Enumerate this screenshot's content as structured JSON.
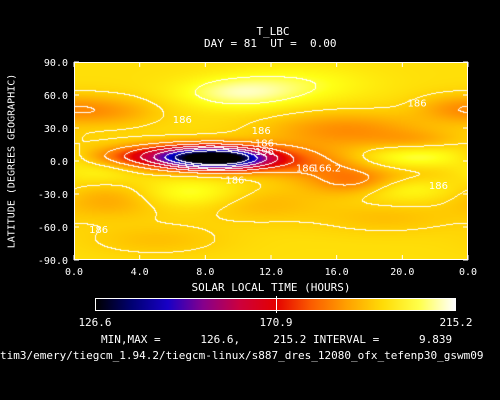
{
  "chart_data": {
    "type": "heatmap",
    "title": "T_LBC",
    "subtitle": {
      "day_label": "DAY =",
      "day": "81",
      "ut_label": "UT =",
      "ut": "0.00"
    },
    "xlabel": "SOLAR LOCAL TIME (HOURS)",
    "ylabel": "LATITUDE (DEGREES GEOGRAPHIC)",
    "xlim": [
      0,
      24
    ],
    "ylim": [
      -90,
      90
    ],
    "xticks": [
      "0.0",
      "4.0",
      "8.0",
      "12.0",
      "16.0",
      "20.0",
      "0.0"
    ],
    "yticks": [
      "90.0",
      "60.0",
      "30.0",
      "0.0",
      "-30.0",
      "-60.0",
      "-90.0"
    ],
    "colorbar": {
      "min_label": "126.6",
      "mid_label": "170.9",
      "max_label": "215.2"
    },
    "stats": {
      "minmax_label": "MIN,MAX =",
      "min": "126.6,",
      "max": "215.2",
      "interval_label": "INTERVAL =",
      "interval": "9.839"
    },
    "contour_labels": [
      {
        "text": "186",
        "x": 6.6,
        "y": 38
      },
      {
        "text": "186",
        "x": 20.9,
        "y": 53
      },
      {
        "text": "186",
        "x": 11.4,
        "y": 28
      },
      {
        "text": "186",
        "x": 11.6,
        "y": 17
      },
      {
        "text": "196",
        "x": 11.6,
        "y": 9
      },
      {
        "text": "186",
        "x": 14.1,
        "y": -6
      },
      {
        "text": "166.2",
        "x": 15.4,
        "y": -6
      },
      {
        "text": "186",
        "x": 9.8,
        "y": -17
      },
      {
        "text": "186",
        "x": 22.2,
        "y": -22
      },
      {
        "text": "186",
        "x": 1.5,
        "y": -62
      }
    ],
    "field": {
      "base": 198,
      "blobs": [
        {
          "x": 8.8,
          "y": 2,
          "sx": 2.2,
          "sy": 7,
          "a": -62
        },
        {
          "x": 6.0,
          "y": 4,
          "sx": 2.8,
          "sy": 8,
          "a": -25
        },
        {
          "x": 10.5,
          "y": 5,
          "sx": 3.8,
          "sy": 9,
          "a": -10
        },
        {
          "x": 14.5,
          "y": -5,
          "sx": 2.6,
          "sy": 9,
          "a": -10
        },
        {
          "x": 17.2,
          "y": -20,
          "sx": 2.0,
          "sy": 9,
          "a": -16
        },
        {
          "x": 16.5,
          "y": 28,
          "sx": 3.5,
          "sy": 12,
          "a": -12
        },
        {
          "x": 21.0,
          "y": 18,
          "sx": 2.0,
          "sy": 7,
          "a": -6
        },
        {
          "x": 3.0,
          "y": 4,
          "sx": 2.0,
          "sy": 6,
          "a": -5
        },
        {
          "x": 22.5,
          "y": -8,
          "sx": 2.5,
          "sy": 10,
          "a": -7
        },
        {
          "x": 2.2,
          "y": 45,
          "sx": 2.2,
          "sy": 10,
          "a": -9
        },
        {
          "x": 23.2,
          "y": 48,
          "sx": 1.8,
          "sy": 9,
          "a": -8
        },
        {
          "x": 2.5,
          "y": -35,
          "sx": 2.5,
          "sy": 12,
          "a": -9
        },
        {
          "x": 11.0,
          "y": -38,
          "sx": 3.0,
          "sy": 12,
          "a": -7
        },
        {
          "x": 5.0,
          "y": -72,
          "sx": 3.0,
          "sy": 10,
          "a": -5
        },
        {
          "x": 19.0,
          "y": -52,
          "sx": 3.0,
          "sy": 10,
          "a": -5
        },
        {
          "x": 10.0,
          "y": 62,
          "sx": 2.5,
          "sy": 10,
          "a": 12
        },
        {
          "x": 7.0,
          "y": -30,
          "sx": 2.5,
          "sy": 10,
          "a": 10
        },
        {
          "x": 19.5,
          "y": -25,
          "sx": 2.5,
          "sy": 8,
          "a": 9
        },
        {
          "x": 21.0,
          "y": 3,
          "sx": 2.5,
          "sy": 8,
          "a": 12
        },
        {
          "x": 1.0,
          "y": -10,
          "sx": 2.0,
          "sy": 8,
          "a": 8
        },
        {
          "x": 14.0,
          "y": 70,
          "sx": 3.0,
          "sy": 12,
          "a": 6
        }
      ]
    }
  },
  "footer": {
    "path": "tim3/emery/tiegcm_1.94.2/tiegcm-linux/s887_dres_12080_ofx_tefenp30_gswm09"
  },
  "colors": {
    "background": "#000000",
    "text": "#ffffff",
    "contour": "#ffffff"
  }
}
